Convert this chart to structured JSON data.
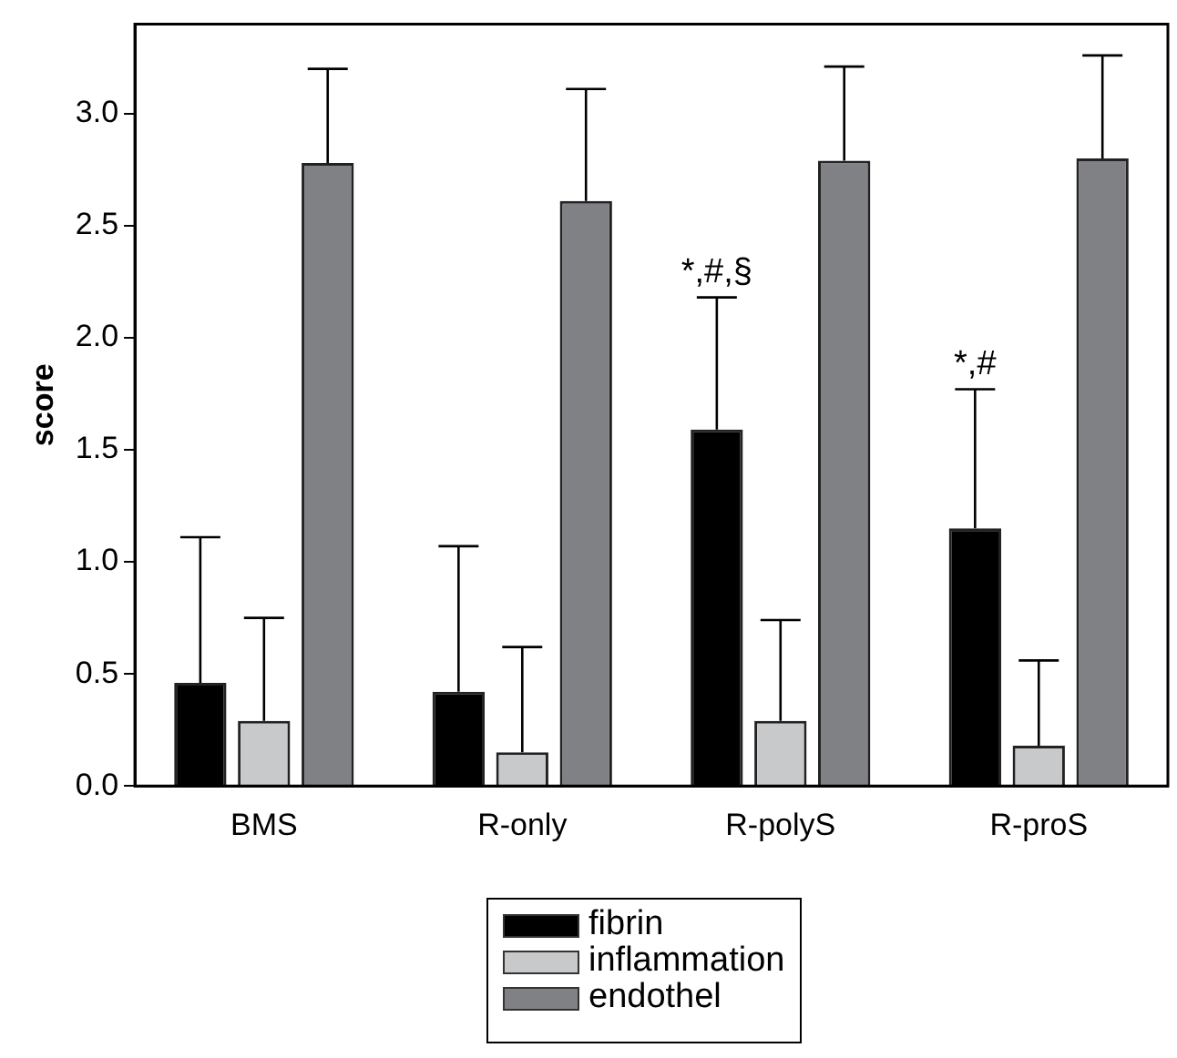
{
  "chart_data": {
    "type": "bar",
    "ylabel": "score",
    "categories": [
      "BMS",
      "R-only",
      "R-polyS",
      "R-proS"
    ],
    "series": [
      {
        "name": "fibrin",
        "color": "#000000",
        "values": [
          0.46,
          0.42,
          1.59,
          1.15
        ],
        "errors": [
          [
            0.46,
            1.11
          ],
          [
            0.42,
            1.07
          ],
          [
            1.59,
            2.18
          ],
          [
            1.15,
            1.77
          ]
        ]
      },
      {
        "name": "inflammation",
        "color": "#c8c9ca",
        "values": [
          0.29,
          0.15,
          0.29,
          0.18
        ],
        "errors": [
          [
            0.29,
            0.75
          ],
          [
            0.15,
            0.62
          ],
          [
            0.29,
            0.74
          ],
          [
            0.18,
            0.56
          ]
        ]
      },
      {
        "name": "endothel",
        "color": "#808185",
        "values": [
          2.78,
          2.61,
          2.79,
          2.8
        ],
        "errors": [
          [
            2.78,
            3.2
          ],
          [
            2.61,
            3.11
          ],
          [
            2.79,
            3.21
          ],
          [
            2.8,
            3.26
          ]
        ]
      }
    ],
    "ylim": [
      0,
      3.4
    ],
    "yticks": [
      {
        "value": 0,
        "label": "0.0"
      },
      {
        "value": 0.5,
        "label": "0.5"
      },
      {
        "value": 1,
        "label": "1.0"
      },
      {
        "value": 1.5,
        "label": "1.5"
      },
      {
        "value": 2,
        "label": "2.0"
      },
      {
        "value": 2.5,
        "label": "2.5"
      },
      {
        "value": 3,
        "label": "3.0"
      }
    ],
    "grid": false,
    "legend": "bottom",
    "annotations": [
      "*,#,§",
      "*,#"
    ]
  }
}
